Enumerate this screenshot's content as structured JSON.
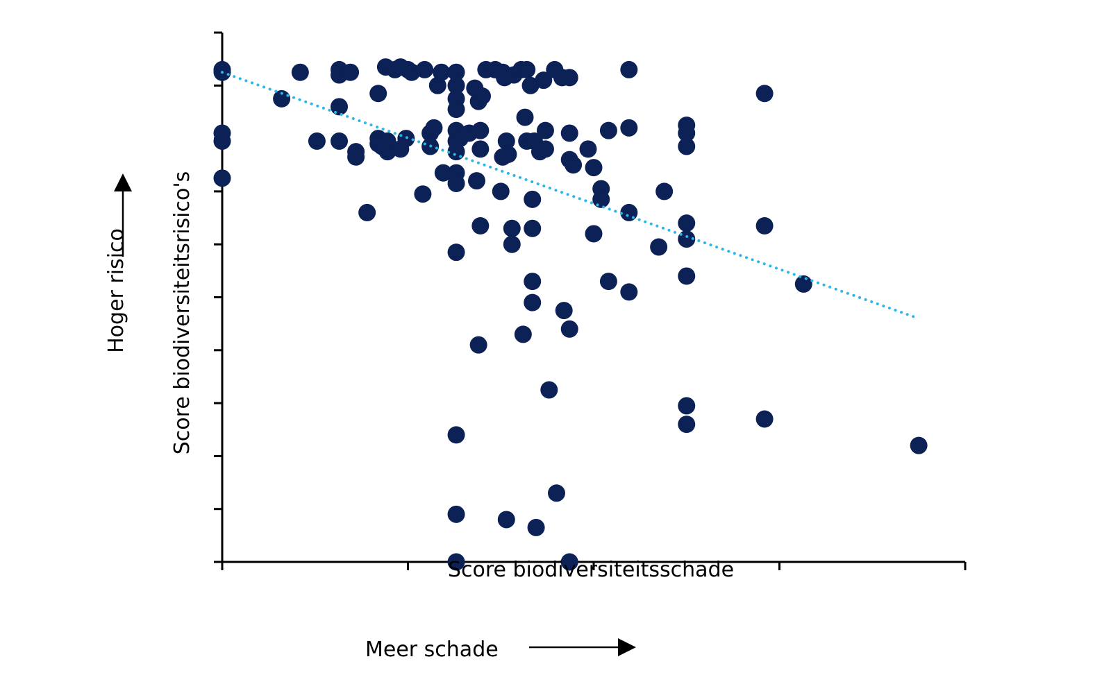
{
  "chart_data": {
    "type": "scatter",
    "xlabel": "Score biodiversiteitsschade",
    "ylabel": "Score biodiversiteitsrisico's",
    "annotations": {
      "x_direction": "Meer schade",
      "y_direction": "Hoger risico"
    },
    "xlim": [
      0,
      4
    ],
    "ylim": [
      0,
      10
    ],
    "tick_labels_shown": false,
    "grid": false,
    "colors": {
      "points": "#0c2155",
      "trendline": "#29b6e8"
    },
    "trendline": {
      "style": "dotted",
      "x": [
        0,
        3.75
      ],
      "y": [
        9.25,
        4.6
      ]
    },
    "points": [
      {
        "x": 0.0,
        "y": 9.3
      },
      {
        "x": 0.0,
        "y": 9.25
      },
      {
        "x": 0.0,
        "y": 8.1
      },
      {
        "x": 0.0,
        "y": 7.95
      },
      {
        "x": 0.0,
        "y": 7.25
      },
      {
        "x": 0.32,
        "y": 8.75
      },
      {
        "x": 0.42,
        "y": 9.25
      },
      {
        "x": 0.51,
        "y": 7.95
      },
      {
        "x": 0.63,
        "y": 9.3
      },
      {
        "x": 0.63,
        "y": 9.2
      },
      {
        "x": 0.69,
        "y": 9.25
      },
      {
        "x": 0.63,
        "y": 8.6
      },
      {
        "x": 0.63,
        "y": 7.95
      },
      {
        "x": 0.72,
        "y": 7.75
      },
      {
        "x": 0.72,
        "y": 7.65
      },
      {
        "x": 0.78,
        "y": 6.6
      },
      {
        "x": 0.84,
        "y": 8.85
      },
      {
        "x": 0.84,
        "y": 8.0
      },
      {
        "x": 0.84,
        "y": 7.9
      },
      {
        "x": 0.89,
        "y": 7.95
      },
      {
        "x": 0.89,
        "y": 7.75
      },
      {
        "x": 0.86,
        "y": 7.85
      },
      {
        "x": 0.96,
        "y": 7.8
      },
      {
        "x": 0.99,
        "y": 8.0
      },
      {
        "x": 0.88,
        "y": 9.35
      },
      {
        "x": 0.93,
        "y": 9.3
      },
      {
        "x": 0.96,
        "y": 9.35
      },
      {
        "x": 1.0,
        "y": 9.3
      },
      {
        "x": 1.02,
        "y": 9.25
      },
      {
        "x": 1.09,
        "y": 9.3
      },
      {
        "x": 1.08,
        "y": 6.95
      },
      {
        "x": 1.12,
        "y": 8.1
      },
      {
        "x": 1.12,
        "y": 7.85
      },
      {
        "x": 1.14,
        "y": 8.2
      },
      {
        "x": 1.16,
        "y": 9.0
      },
      {
        "x": 1.18,
        "y": 9.25
      },
      {
        "x": 1.26,
        "y": 9.25
      },
      {
        "x": 1.26,
        "y": 9.0
      },
      {
        "x": 1.26,
        "y": 8.75
      },
      {
        "x": 1.26,
        "y": 8.55
      },
      {
        "x": 1.26,
        "y": 8.15
      },
      {
        "x": 1.26,
        "y": 7.95
      },
      {
        "x": 1.26,
        "y": 7.75
      },
      {
        "x": 1.28,
        "y": 8.0
      },
      {
        "x": 1.33,
        "y": 8.1
      },
      {
        "x": 1.19,
        "y": 7.35
      },
      {
        "x": 1.26,
        "y": 7.35
      },
      {
        "x": 1.26,
        "y": 7.15
      },
      {
        "x": 1.26,
        "y": 5.85
      },
      {
        "x": 1.26,
        "y": 2.4
      },
      {
        "x": 1.26,
        "y": 0.9
      },
      {
        "x": 1.26,
        "y": 0.0
      },
      {
        "x": 1.36,
        "y": 8.95
      },
      {
        "x": 1.38,
        "y": 8.7
      },
      {
        "x": 1.4,
        "y": 8.8
      },
      {
        "x": 1.39,
        "y": 8.15
      },
      {
        "x": 1.39,
        "y": 7.8
      },
      {
        "x": 1.37,
        "y": 7.2
      },
      {
        "x": 1.39,
        "y": 6.35
      },
      {
        "x": 1.38,
        "y": 4.1
      },
      {
        "x": 1.42,
        "y": 9.3
      },
      {
        "x": 1.47,
        "y": 9.3
      },
      {
        "x": 1.51,
        "y": 9.25
      },
      {
        "x": 1.52,
        "y": 9.15
      },
      {
        "x": 1.5,
        "y": 7.0
      },
      {
        "x": 1.53,
        "y": 7.95
      },
      {
        "x": 1.54,
        "y": 7.7
      },
      {
        "x": 1.51,
        "y": 7.65
      },
      {
        "x": 1.56,
        "y": 6.3
      },
      {
        "x": 1.56,
        "y": 6.0
      },
      {
        "x": 1.53,
        "y": 0.8
      },
      {
        "x": 1.57,
        "y": 9.2
      },
      {
        "x": 1.61,
        "y": 9.3
      },
      {
        "x": 1.64,
        "y": 9.3
      },
      {
        "x": 1.63,
        "y": 8.4
      },
      {
        "x": 1.64,
        "y": 7.95
      },
      {
        "x": 1.62,
        "y": 4.3
      },
      {
        "x": 1.66,
        "y": 9.0
      },
      {
        "x": 1.68,
        "y": 7.95
      },
      {
        "x": 1.67,
        "y": 6.85
      },
      {
        "x": 1.67,
        "y": 6.3
      },
      {
        "x": 1.67,
        "y": 5.3
      },
      {
        "x": 1.67,
        "y": 4.9
      },
      {
        "x": 1.71,
        "y": 7.75
      },
      {
        "x": 1.73,
        "y": 9.1
      },
      {
        "x": 1.74,
        "y": 8.15
      },
      {
        "x": 1.74,
        "y": 7.8
      },
      {
        "x": 1.76,
        "y": 3.25
      },
      {
        "x": 1.69,
        "y": 0.65
      },
      {
        "x": 1.79,
        "y": 9.3
      },
      {
        "x": 1.83,
        "y": 9.15
      },
      {
        "x": 1.87,
        "y": 9.15
      },
      {
        "x": 1.87,
        "y": 8.1
      },
      {
        "x": 1.87,
        "y": 7.6
      },
      {
        "x": 1.89,
        "y": 7.5
      },
      {
        "x": 1.84,
        "y": 4.75
      },
      {
        "x": 1.87,
        "y": 4.4
      },
      {
        "x": 1.8,
        "y": 1.3
      },
      {
        "x": 1.87,
        "y": 0.0
      },
      {
        "x": 1.97,
        "y": 7.8
      },
      {
        "x": 2.0,
        "y": 7.45
      },
      {
        "x": 2.04,
        "y": 7.05
      },
      {
        "x": 2.04,
        "y": 6.85
      },
      {
        "x": 2.0,
        "y": 6.2
      },
      {
        "x": 2.08,
        "y": 5.3
      },
      {
        "x": 2.08,
        "y": 8.15
      },
      {
        "x": 2.19,
        "y": 9.3
      },
      {
        "x": 2.19,
        "y": 8.2
      },
      {
        "x": 2.19,
        "y": 6.6
      },
      {
        "x": 2.19,
        "y": 5.1
      },
      {
        "x": 2.38,
        "y": 7.0
      },
      {
        "x": 2.35,
        "y": 5.95
      },
      {
        "x": 2.5,
        "y": 8.25
      },
      {
        "x": 2.5,
        "y": 8.1
      },
      {
        "x": 2.5,
        "y": 7.85
      },
      {
        "x": 2.5,
        "y": 6.4
      },
      {
        "x": 2.5,
        "y": 6.1
      },
      {
        "x": 2.5,
        "y": 5.4
      },
      {
        "x": 2.5,
        "y": 2.95
      },
      {
        "x": 2.5,
        "y": 2.6
      },
      {
        "x": 2.92,
        "y": 8.85
      },
      {
        "x": 2.92,
        "y": 6.35
      },
      {
        "x": 2.92,
        "y": 2.7
      },
      {
        "x": 3.13,
        "y": 5.25
      },
      {
        "x": 3.75,
        "y": 2.2
      }
    ]
  }
}
